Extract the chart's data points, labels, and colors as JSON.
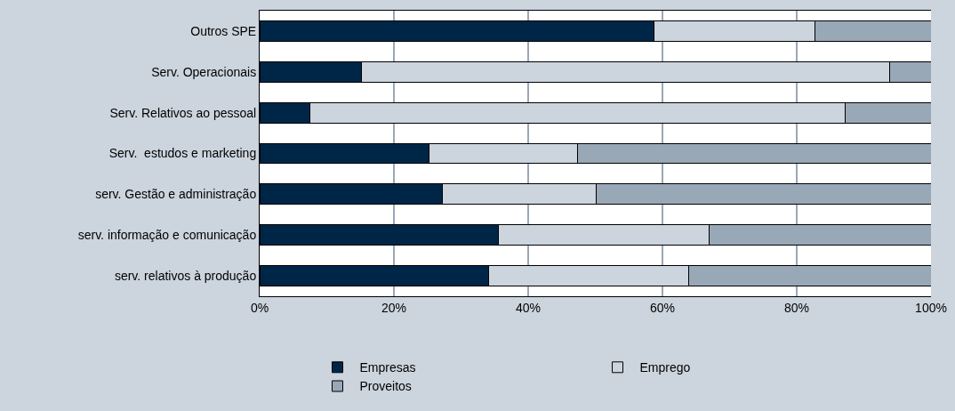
{
  "chart_data": {
    "type": "bar",
    "orientation": "horizontal",
    "stacked": true,
    "categories": [
      "Outros SPE",
      "Serv. Operacionais",
      "Serv. Relativos ao pessoal",
      "Serv.  estudos e marketing",
      "serv. Gestão e administração",
      "serv. informação e comunicação",
      "serv. relativos à produção"
    ],
    "series": [
      {
        "name": "Empresas",
        "color": "#002647",
        "values": [
          58.8,
          15.1,
          7.5,
          25.2,
          27.2,
          35.6,
          34.1
        ]
      },
      {
        "name": "Emprego",
        "color": "#ccd4dd",
        "values": [
          23.9,
          78.7,
          79.7,
          22.1,
          22.9,
          31.4,
          29.8
        ]
      },
      {
        "name": "Proveitos",
        "color": "#99a8b7",
        "values": [
          17.3,
          6.2,
          12.8,
          52.7,
          49.9,
          33.0,
          36.1
        ]
      }
    ],
    "xlim": [
      0,
      100
    ],
    "xticks": [
      {
        "value": 0,
        "label": "0%"
      },
      {
        "value": 20,
        "label": "20%"
      },
      {
        "value": 40,
        "label": "40%"
      },
      {
        "value": 60,
        "label": "60%"
      },
      {
        "value": 80,
        "label": "80%"
      },
      {
        "value": 100,
        "label": "100%"
      }
    ],
    "grid": "x",
    "legend": "bottom"
  }
}
